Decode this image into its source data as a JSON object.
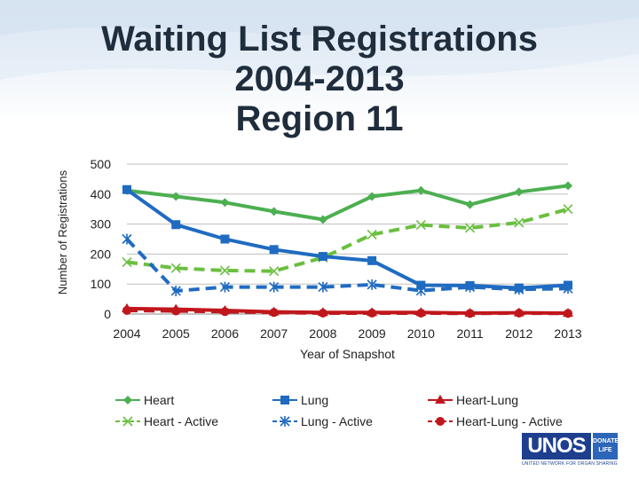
{
  "slide": {
    "title_lines": [
      "Waiting List Registrations",
      "2004-2013",
      "Region 11"
    ]
  },
  "logo": {
    "word": "UNOS",
    "tag_line1": "DONATE",
    "tag_line2": "LIFE",
    "subtitle": "UNITED NETWORK FOR ORGAN SHARING"
  },
  "colors": {
    "green": "#4caf50",
    "green_light": "#6abf40",
    "blue": "#1f6bc1",
    "red": "#c0171c",
    "grid": "#bfbfbf",
    "title": "#1f2d3d"
  },
  "chart_data": {
    "type": "line",
    "title": "Waiting List Registrations 2004-2013 Region 11",
    "xlabel": "Year of Snapshot",
    "ylabel": "Number of Registrations",
    "ylim": [
      0,
      500
    ],
    "yticks": [
      0,
      100,
      200,
      300,
      400,
      500
    ],
    "grid": true,
    "legend_position": "bottom",
    "categories": [
      "2004",
      "2005",
      "2006",
      "2007",
      "2008",
      "2009",
      "2010",
      "2011",
      "2012",
      "2013"
    ],
    "series": [
      {
        "name": "Heart",
        "color": "#4caf50",
        "dash": false,
        "marker": "diamond",
        "values": [
          412,
          392,
          372,
          342,
          315,
          392,
          412,
          365,
          407,
          428
        ]
      },
      {
        "name": "Heart - Active",
        "color": "#6abf40",
        "dash": true,
        "marker": "x",
        "values": [
          173,
          153,
          145,
          143,
          188,
          265,
          297,
          287,
          305,
          350
        ]
      },
      {
        "name": "Lung",
        "color": "#1f6bc1",
        "dash": false,
        "marker": "square",
        "values": [
          415,
          298,
          250,
          215,
          192,
          178,
          96,
          95,
          87,
          96
        ]
      },
      {
        "name": "Lung - Active",
        "color": "#1f6bc1",
        "dash": true,
        "marker": "star",
        "values": [
          250,
          77,
          90,
          90,
          90,
          98,
          78,
          90,
          82,
          85
        ]
      },
      {
        "name": "Heart-Lung",
        "color": "#c0171c",
        "dash": false,
        "marker": "triangle",
        "values": [
          18,
          16,
          12,
          7,
          5,
          5,
          5,
          3,
          4,
          3
        ]
      },
      {
        "name": "Heart-Lung - Active",
        "color": "#c0171c",
        "dash": true,
        "marker": "circle",
        "values": [
          12,
          10,
          8,
          5,
          3,
          3,
          3,
          2,
          3,
          2
        ]
      }
    ]
  }
}
